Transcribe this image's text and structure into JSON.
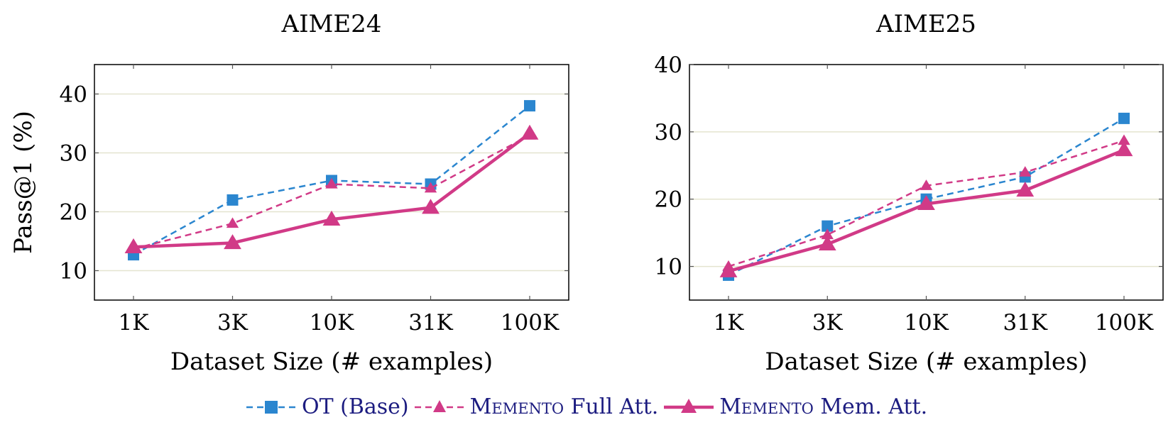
{
  "chart_data": [
    {
      "type": "line",
      "title": "AIME24",
      "xlabel": "Dataset Size (# examples)",
      "ylabel": "Pass@1 (%)",
      "categories": [
        "1K",
        "3K",
        "10K",
        "31K",
        "100K"
      ],
      "ylim": [
        5,
        45
      ],
      "yticks": [
        10,
        20,
        30,
        40
      ],
      "grid": true,
      "series": [
        {
          "name": "OT (Base)",
          "values": [
            12.7,
            22.0,
            25.3,
            24.7,
            38.0
          ]
        },
        {
          "name": "MEMENTO Full Att.",
          "values": [
            13.7,
            18.0,
            24.7,
            24.0,
            33.0
          ]
        },
        {
          "name": "MEMENTO Mem. Att.",
          "values": [
            14.0,
            14.7,
            18.7,
            20.7,
            33.3
          ]
        }
      ]
    },
    {
      "type": "line",
      "title": "AIME25",
      "xlabel": "Dataset Size (# examples)",
      "ylabel": "",
      "categories": [
        "1K",
        "3K",
        "10K",
        "31K",
        "100K"
      ],
      "ylim": [
        5,
        40
      ],
      "yticks": [
        10,
        20,
        30,
        40
      ],
      "grid": true,
      "series": [
        {
          "name": "OT (Base)",
          "values": [
            8.7,
            16.0,
            20.0,
            23.3,
            32.0
          ]
        },
        {
          "name": "MEMENTO Full Att.",
          "values": [
            10.0,
            14.7,
            22.0,
            24.0,
            28.7
          ]
        },
        {
          "name": "MEMENTO Mem. Att.",
          "values": [
            9.3,
            13.3,
            19.3,
            21.3,
            27.3
          ]
        }
      ]
    }
  ],
  "legend": {
    "placement": "bottom",
    "items": [
      {
        "label_sc": "",
        "label_rest": "OT (Base)",
        "color": "#2b86cf",
        "marker": "square",
        "style": "dashed"
      },
      {
        "label_sc": "Memento",
        "label_rest": " Full Att.",
        "color": "#d13a87",
        "marker": "triangle",
        "style": "dashed"
      },
      {
        "label_sc": "Memento",
        "label_rest": " Mem. Att.",
        "color": "#d13a87",
        "marker": "triangle",
        "style": "solid"
      }
    ]
  },
  "colors": {
    "ot_base": "#2b86cf",
    "memento": "#d13a87",
    "grid": "#e4e4cf",
    "legend_text": "#1c1c80"
  }
}
